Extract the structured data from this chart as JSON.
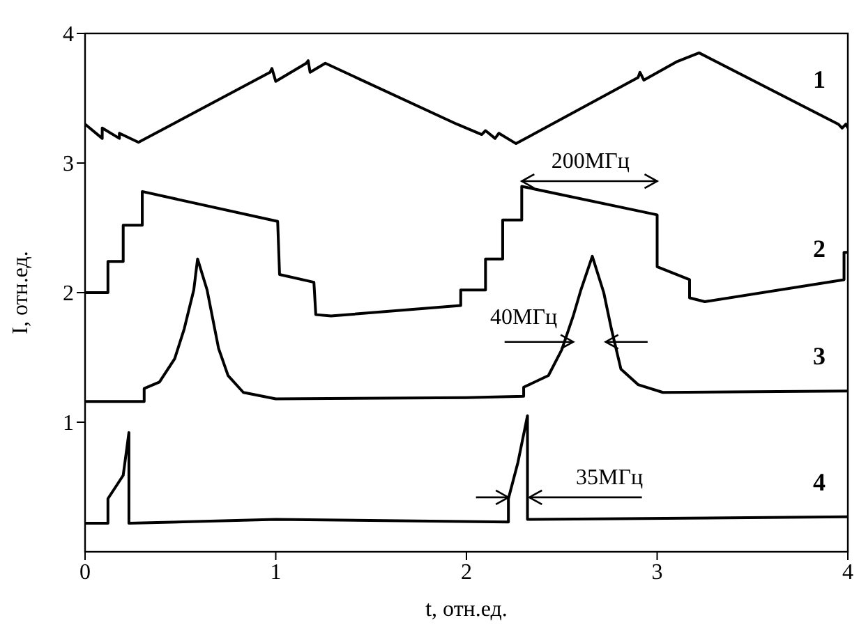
{
  "chart_data": {
    "type": "line",
    "xlabel": "t, отн.ед.",
    "ylabel": "I, отн.ед.",
    "xlim": [
      0,
      4
    ],
    "xticks": [
      0,
      1,
      2,
      3,
      4
    ],
    "ylim": [
      0,
      4
    ],
    "yticks": [
      1,
      2,
      3,
      4
    ],
    "grid": false,
    "legend": false,
    "marker": "none",
    "line_style": "solid",
    "series": [
      {
        "name": "1",
        "color": "#000000",
        "x": [
          0,
          0.09,
          0.09,
          0.18,
          0.18,
          0.28,
          0.97,
          0.98,
          1.0,
          1.16,
          1.17,
          1.18,
          1.26,
          1.95,
          2.08,
          2.1,
          2.15,
          2.17,
          2.26,
          2.9,
          2.91,
          2.93,
          3.1,
          3.22,
          3.95,
          3.97,
          3.99,
          4.0
        ],
        "values": [
          3.3,
          3.19,
          3.27,
          3.19,
          3.23,
          3.16,
          3.7,
          3.73,
          3.63,
          3.77,
          3.79,
          3.7,
          3.77,
          3.3,
          3.22,
          3.25,
          3.19,
          3.23,
          3.15,
          3.66,
          3.7,
          3.64,
          3.78,
          3.85,
          3.3,
          3.27,
          3.3,
          3.27
        ]
      },
      {
        "name": "2",
        "color": "#000000",
        "x": [
          0,
          0.12,
          0.12,
          0.2,
          0.2,
          0.3,
          0.3,
          1.01,
          1.02,
          1.2,
          1.21,
          1.29,
          1.97,
          1.97,
          2.1,
          2.1,
          2.19,
          2.19,
          2.29,
          2.29,
          3.0,
          3.0,
          3.17,
          3.17,
          3.25,
          3.98,
          3.98,
          4.0
        ],
        "values": [
          2.0,
          2.0,
          2.24,
          2.24,
          2.52,
          2.52,
          2.78,
          2.55,
          2.14,
          2.08,
          1.83,
          1.82,
          1.9,
          2.02,
          2.02,
          2.26,
          2.26,
          2.56,
          2.56,
          2.82,
          2.6,
          2.2,
          2.1,
          1.96,
          1.93,
          2.1,
          2.31,
          2.31
        ]
      },
      {
        "name": "3",
        "color": "#000000",
        "x": [
          0,
          0.31,
          0.31,
          0.39,
          0.47,
          0.52,
          0.57,
          0.59,
          0.64,
          0.7,
          0.75,
          0.83,
          1.0,
          2.0,
          2.3,
          2.3,
          2.43,
          2.5,
          2.56,
          2.6,
          2.66,
          2.72,
          2.76,
          2.81,
          2.9,
          3.03,
          4.0
        ],
        "values": [
          1.16,
          1.16,
          1.26,
          1.31,
          1.49,
          1.72,
          2.02,
          2.26,
          2.02,
          1.57,
          1.36,
          1.23,
          1.18,
          1.19,
          1.2,
          1.27,
          1.36,
          1.56,
          1.82,
          2.02,
          2.28,
          2.0,
          1.72,
          1.41,
          1.29,
          1.23,
          1.24
        ]
      },
      {
        "name": "4",
        "color": "#000000",
        "x": [
          0,
          0.12,
          0.12,
          0.2,
          0.23,
          0.23,
          1.0,
          2.22,
          2.22,
          2.27,
          2.32,
          2.32,
          4.0
        ],
        "values": [
          0.22,
          0.22,
          0.41,
          0.59,
          0.92,
          0.22,
          0.25,
          0.23,
          0.41,
          0.69,
          1.05,
          0.25,
          0.27
        ]
      }
    ],
    "annotations": [
      "200МГц",
      "40МГц",
      {
        "text": "35МГц",
        "x": 2.32,
        "y": 0.42
      }
    ]
  }
}
